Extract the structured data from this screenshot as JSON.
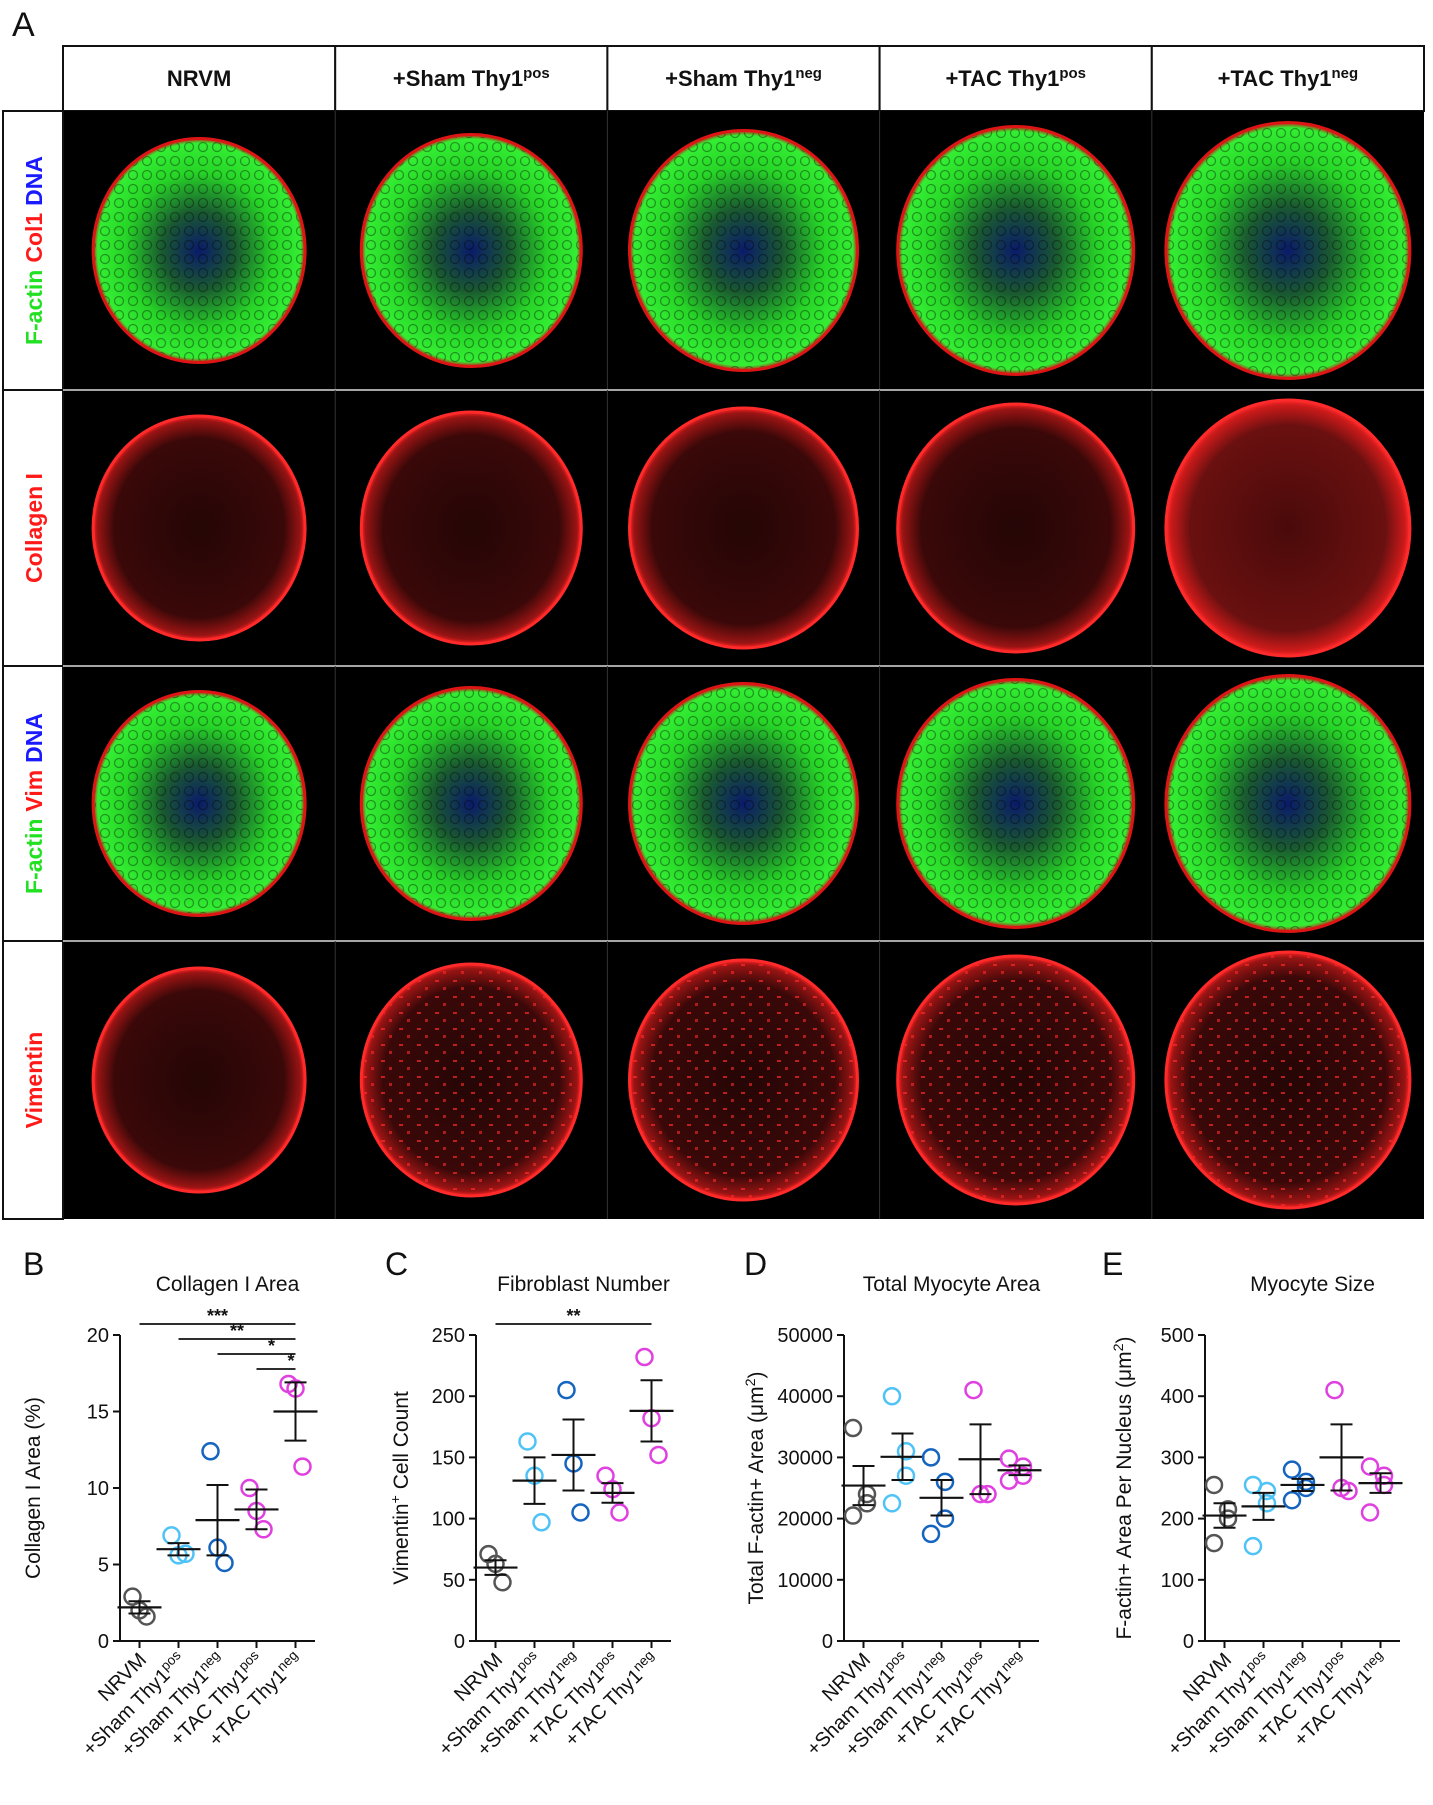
{
  "panel_a": {
    "label": "A",
    "columns": [
      {
        "main": "NRVM"
      },
      {
        "main": "+Sham Thy1",
        "sup": "pos"
      },
      {
        "main": "+Sham Thy1",
        "sup": "neg"
      },
      {
        "main": "+TAC Thy1",
        "sup": "pos"
      },
      {
        "main": "+TAC Thy1",
        "sup": "neg"
      }
    ],
    "rows": [
      [
        {
          "text": "F-actin",
          "color": "#22e022"
        },
        {
          "text": "Col1",
          "color": "#ff1a1a"
        },
        {
          "text": "DNA",
          "color": "#1a1aff"
        }
      ],
      [
        {
          "text": "Collagen I",
          "color": "#ff1a1a"
        }
      ],
      [
        {
          "text": "F-actin",
          "color": "#22e022"
        },
        {
          "text": "Vim",
          "color": "#ff1a1a"
        },
        {
          "text": "DNA",
          "color": "#1a1aff"
        }
      ],
      [
        {
          "text": "Vimentin",
          "color": "#ff1a1a"
        }
      ]
    ]
  },
  "chart_data": [
    {
      "type": "scatter-dot",
      "label": "B",
      "title": "Collagen I Area",
      "y_label": {
        "main": "Collagen I Area (%)"
      },
      "categories": [
        {
          "main": "NRVM"
        },
        {
          "main": "+Sham Thy1",
          "sup": "pos"
        },
        {
          "main": "+Sham Thy1",
          "sup": "neg"
        },
        {
          "main": "+TAC Thy1",
          "sup": "pos"
        },
        {
          "main": "+TAC Thy1",
          "sup": "neg"
        }
      ],
      "groups": [
        {
          "color": "#555555",
          "points": [
            2.9,
            2.0,
            1.6
          ],
          "mean": 2.2,
          "sem": 0.4
        },
        {
          "color": "#4fc3f7",
          "points": [
            6.9,
            5.6,
            5.7
          ],
          "mean": 6.0,
          "sem": 0.4
        },
        {
          "color": "#1565c0",
          "points": [
            12.4,
            6.1,
            5.1
          ],
          "mean": 7.9,
          "sem": 2.3
        },
        {
          "color": "#e040e0",
          "points": [
            10.0,
            8.5,
            7.3
          ],
          "mean": 8.6,
          "sem": 1.3
        },
        {
          "color": "#e040e0",
          "points": [
            16.8,
            16.5,
            11.4
          ],
          "mean": 15.0,
          "sem": 1.9
        }
      ],
      "ylim": [
        0,
        20
      ],
      "yticks": [
        0,
        5,
        10,
        15,
        20
      ],
      "significance": [
        {
          "from": 0,
          "to": 4,
          "label": "***"
        },
        {
          "from": 1,
          "to": 4,
          "label": "**"
        },
        {
          "from": 2,
          "to": 4,
          "label": "*"
        },
        {
          "from": 3,
          "to": 4,
          "label": "*"
        }
      ]
    },
    {
      "type": "scatter-dot",
      "label": "C",
      "title": "Fibroblast Number",
      "y_label": {
        "main": "Vimentin",
        "sup": "+",
        "tail": " Cell Count"
      },
      "categories": [
        {
          "main": "NRVM"
        },
        {
          "main": "+Sham Thy1",
          "sup": "pos"
        },
        {
          "main": "+Sham Thy1",
          "sup": "neg"
        },
        {
          "main": "+TAC Thy1",
          "sup": "pos"
        },
        {
          "main": "+TAC Thy1",
          "sup": "neg"
        }
      ],
      "groups": [
        {
          "color": "#555555",
          "points": [
            71,
            63,
            48
          ],
          "mean": 60,
          "sem": 6
        },
        {
          "color": "#4fc3f7",
          "points": [
            163,
            135,
            97
          ],
          "mean": 131,
          "sem": 19
        },
        {
          "color": "#1565c0",
          "points": [
            205,
            145,
            105
          ],
          "mean": 152,
          "sem": 29
        },
        {
          "color": "#e040e0",
          "points": [
            135,
            124,
            105
          ],
          "mean": 121,
          "sem": 8
        },
        {
          "color": "#e040e0",
          "points": [
            232,
            182,
            152
          ],
          "mean": 188,
          "sem": 25
        }
      ],
      "ylim": [
        0,
        250
      ],
      "yticks": [
        0,
        50,
        100,
        150,
        200,
        250
      ],
      "significance": [
        {
          "from": 0,
          "to": 4,
          "label": "**"
        }
      ]
    },
    {
      "type": "scatter-dot",
      "label": "D",
      "title": "Total Myocyte Area",
      "y_label": {
        "main": "Total F-actin+ Area (μm",
        "sup": "2",
        "tail": ")"
      },
      "categories": [
        {
          "main": "NRVM"
        },
        {
          "main": "+Sham Thy1",
          "sup": "pos"
        },
        {
          "main": "+Sham Thy1",
          "sup": "neg"
        },
        {
          "main": "+TAC Thy1",
          "sup": "pos"
        },
        {
          "main": "+TAC Thy1",
          "sup": "neg"
        }
      ],
      "groups": [
        {
          "color": "#555555",
          "points": [
            34800,
            24000,
            22500,
            20500
          ],
          "mean": 25400,
          "sem": 3200
        },
        {
          "color": "#4fc3f7",
          "points": [
            40000,
            31000,
            27000,
            22500
          ],
          "mean": 30100,
          "sem": 3800
        },
        {
          "color": "#1565c0",
          "points": [
            30000,
            26000,
            20000,
            17500
          ],
          "mean": 23400,
          "sem": 2900
        },
        {
          "color": "#e040e0",
          "points": [
            41000,
            24000,
            24000
          ],
          "mean": 29700,
          "sem": 5700
        },
        {
          "color": "#e040e0",
          "points": [
            29800,
            28500,
            27000,
            26200
          ],
          "mean": 27900,
          "sem": 800
        }
      ],
      "ylim": [
        0,
        50000
      ],
      "yticks": [
        0,
        10000,
        20000,
        30000,
        40000,
        50000
      ],
      "significance": []
    },
    {
      "type": "scatter-dot",
      "label": "E",
      "title": "Myocyte Size",
      "y_label": {
        "main": "F-actin+ Area Per Nucleus (μm",
        "sup": "2",
        "tail": ")"
      },
      "categories": [
        {
          "main": "NRVM"
        },
        {
          "main": "+Sham Thy1",
          "sup": "pos"
        },
        {
          "main": "+Sham Thy1",
          "sup": "neg"
        },
        {
          "main": "+TAC Thy1",
          "sup": "pos"
        },
        {
          "main": "+TAC Thy1",
          "sup": "neg"
        }
      ],
      "groups": [
        {
          "color": "#555555",
          "points": [
            255,
            215,
            200,
            160
          ],
          "mean": 205,
          "sem": 20
        },
        {
          "color": "#4fc3f7",
          "points": [
            255,
            245,
            225,
            155
          ],
          "mean": 220,
          "sem": 22
        },
        {
          "color": "#1565c0",
          "points": [
            280,
            260,
            250,
            230
          ],
          "mean": 255,
          "sem": 10
        },
        {
          "color": "#e040e0",
          "points": [
            410,
            250,
            245
          ],
          "mean": 300,
          "sem": 54
        },
        {
          "color": "#e040e0",
          "points": [
            285,
            270,
            255,
            210
          ],
          "mean": 258,
          "sem": 16
        }
      ],
      "ylim": [
        0,
        500
      ],
      "yticks": [
        0,
        100,
        200,
        300,
        400,
        500
      ],
      "significance": []
    }
  ]
}
